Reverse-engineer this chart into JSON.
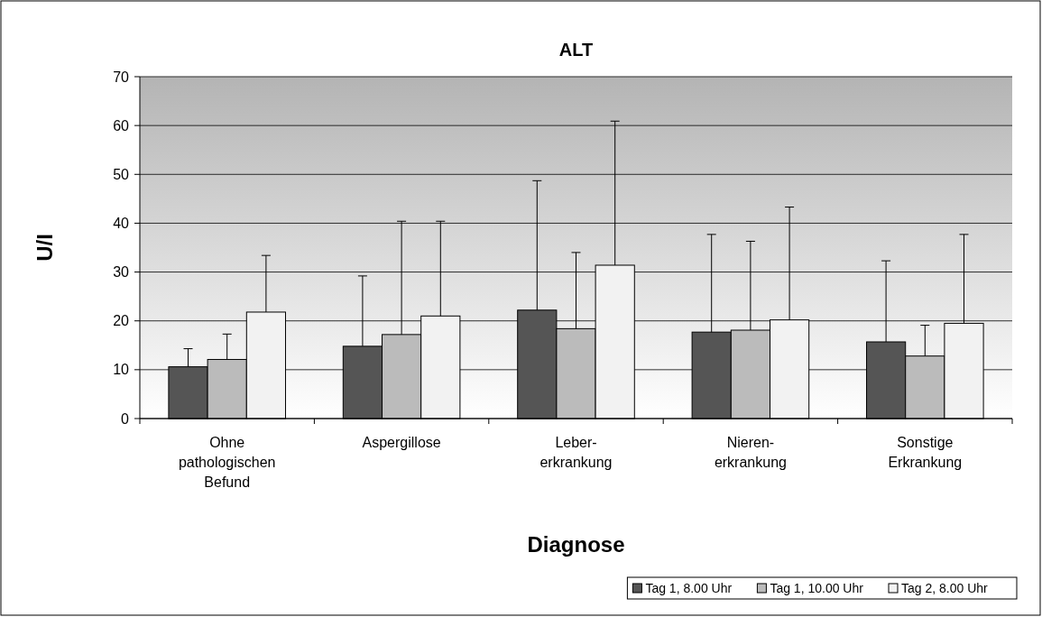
{
  "chart_data": {
    "type": "bar",
    "title": "ALT",
    "xlabel": "Diagnose",
    "ylabel": "U/I",
    "categories": [
      "Ohne pathologischen Befund",
      "Aspergillose",
      "Leber-\nerkrankung",
      "Nieren-\nerkrankung",
      "Sonstige\nErkrankung"
    ],
    "series": [
      {
        "name": "Tag 1, 8.00 Uhr",
        "color": "#555555",
        "values": [
          10.6,
          14.8,
          22.2,
          17.7,
          15.7
        ],
        "errors": [
          [
            10.6,
            14.3
          ],
          [
            14.8,
            29.2
          ],
          [
            22.2,
            48.7
          ],
          [
            17.7,
            37.7
          ],
          [
            15.7,
            32.3
          ]
        ]
      },
      {
        "name": "Tag 1, 10.00 Uhr",
        "color": "#bbbbbb",
        "values": [
          12.1,
          17.2,
          18.4,
          18.1,
          12.8
        ],
        "errors": [
          [
            12.1,
            17.3
          ],
          [
            17.2,
            40.4
          ],
          [
            18.4,
            34
          ],
          [
            18.1,
            36.3
          ],
          [
            12.8,
            19.1
          ]
        ]
      },
      {
        "name": "Tag 2, 8.00 Uhr",
        "color": "#f2f2f2",
        "values": [
          21.8,
          21,
          31.4,
          20.2,
          19.5
        ],
        "errors": [
          [
            21.8,
            33.4
          ],
          [
            21,
            40.4
          ],
          [
            31.4,
            60.9
          ],
          [
            20.2,
            43.3
          ],
          [
            19.5,
            37.7
          ]
        ]
      }
    ],
    "ylim": [
      0,
      70
    ],
    "yticks": [
      0,
      10,
      20,
      30,
      40,
      50,
      60,
      70
    ],
    "grid": "y",
    "legend": "bottom right"
  }
}
